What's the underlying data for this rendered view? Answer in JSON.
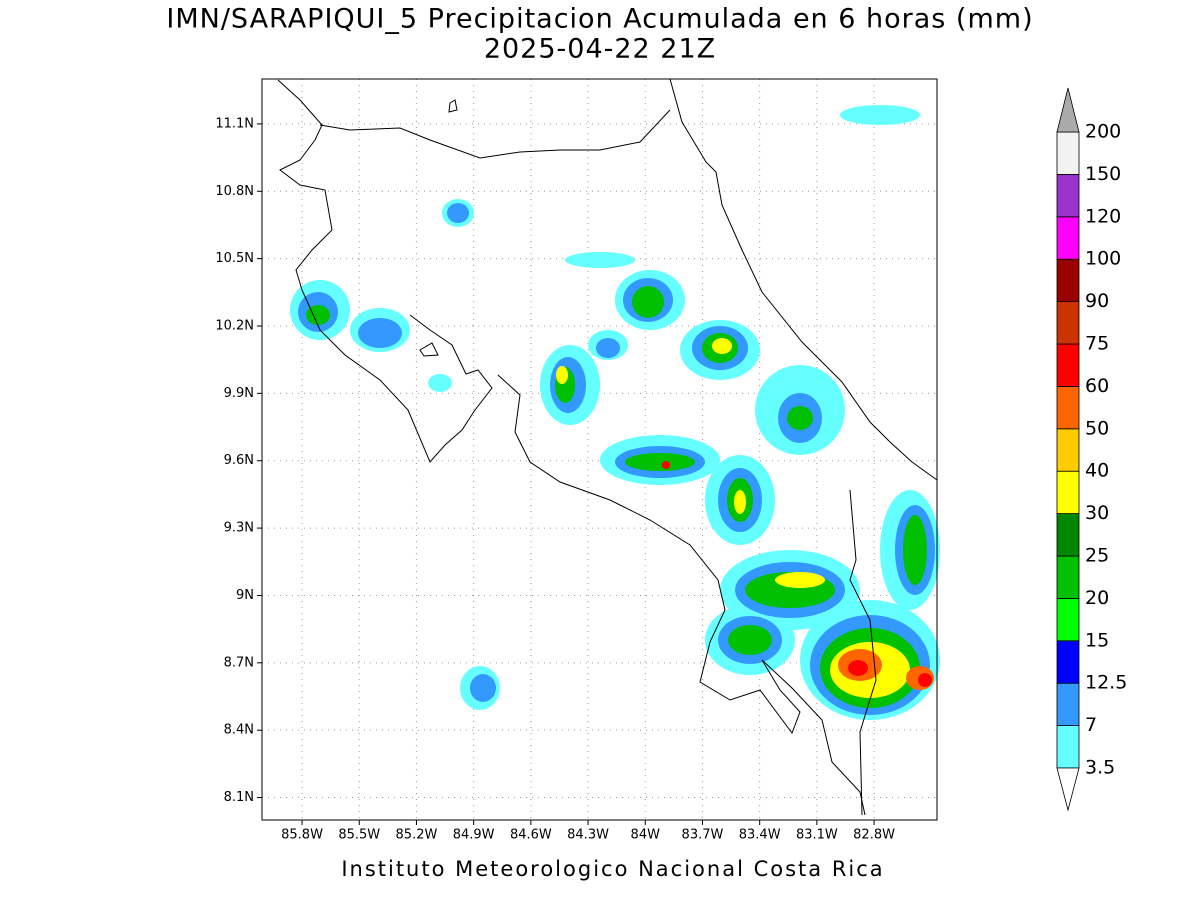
{
  "title": "IMN/SARAPIQUI_5 Precipitacion Acumulada en 6 horas (mm)",
  "subtitle": "2025-04-22 21Z",
  "map": {
    "lonlim": [
      -86.01,
      -82.47
    ],
    "latlim": [
      8.0,
      11.3
    ],
    "lon_ticks": [
      {
        "value": -85.8,
        "label": "85.8W"
      },
      {
        "value": -85.5,
        "label": "85.5W"
      },
      {
        "value": -85.2,
        "label": "85.2W"
      },
      {
        "value": -84.9,
        "label": "84.9W"
      },
      {
        "value": -84.6,
        "label": "84.6W"
      },
      {
        "value": -84.3,
        "label": "84.3W"
      },
      {
        "value": -84.0,
        "label": "84W"
      },
      {
        "value": -83.7,
        "label": "83.7W"
      },
      {
        "value": -83.4,
        "label": "83.4W"
      },
      {
        "value": -83.1,
        "label": "83.1W"
      },
      {
        "value": -82.8,
        "label": "82.8W"
      }
    ],
    "lat_ticks": [
      {
        "value": 11.1,
        "label": "11.1N"
      },
      {
        "value": 10.8,
        "label": "10.8N"
      },
      {
        "value": 10.5,
        "label": "10.5N"
      },
      {
        "value": 10.2,
        "label": "10.2N"
      },
      {
        "value": 9.9,
        "label": "9.9N"
      },
      {
        "value": 9.6,
        "label": "9.6N"
      },
      {
        "value": 9.3,
        "label": "9.3N"
      },
      {
        "value": 9.0,
        "label": "9N"
      },
      {
        "value": 8.7,
        "label": "8.7N"
      },
      {
        "value": 8.4,
        "label": "8.4N"
      },
      {
        "value": 8.1,
        "label": "8.1N"
      }
    ],
    "grid": true
  },
  "colorbar": {
    "levels": [
      3.5,
      7,
      12.5,
      15,
      20,
      25,
      30,
      40,
      50,
      60,
      75,
      90,
      100,
      120,
      150,
      200
    ],
    "colors": [
      "#66ffff",
      "#3399ff",
      "#0000ff",
      "#00ff00",
      "#00c000",
      "#008800",
      "#ffff00",
      "#ffcc00",
      "#ff6600",
      "#ff0000",
      "#cc3300",
      "#990000",
      "#ff00ff",
      "#9933cc",
      "#f2f2f2"
    ],
    "under_color": "#ffffff",
    "over_color": "#aaaaaa"
  },
  "credit": "Instituto Meteorologico Nacional Costa Rica"
}
